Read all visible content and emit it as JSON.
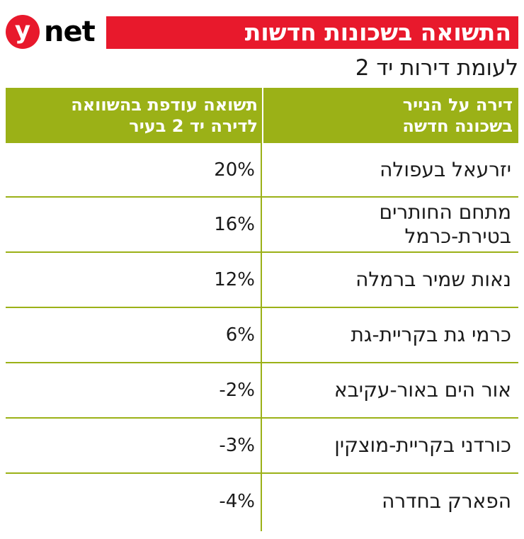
{
  "brand": {
    "logo_letter": "y",
    "logo_word": "net",
    "accent_color": "#e8192c"
  },
  "title": "התשואה בשכונות חדשות",
  "subtitle": "לעומת דירות יד 2",
  "chart_data": {
    "type": "table",
    "header_color": "#9bb117",
    "columns": [
      [
        "דירה על הנייר",
        "בשכונה חדשה"
      ],
      [
        "תשואה עודפת בהשוואה",
        "לדירה יד 2 בעיר"
      ]
    ],
    "rows": [
      {
        "name": [
          "יזרעאל בעפולה"
        ],
        "value": "20%"
      },
      {
        "name": [
          "מתחם החותרים",
          "בטירת-כרמל"
        ],
        "value": "16%"
      },
      {
        "name": [
          "נאות שמיר ברמלה"
        ],
        "value": "12%"
      },
      {
        "name": [
          "כרמי גת בקריית-גת"
        ],
        "value": "6%"
      },
      {
        "name": [
          "אור הים באור-עקיבא"
        ],
        "value": "-2%"
      },
      {
        "name": [
          "כורדני בקריית-מוצקין"
        ],
        "value": "-3%"
      },
      {
        "name": [
          "הפארק בחדרה"
        ],
        "value": "-4%"
      }
    ]
  }
}
